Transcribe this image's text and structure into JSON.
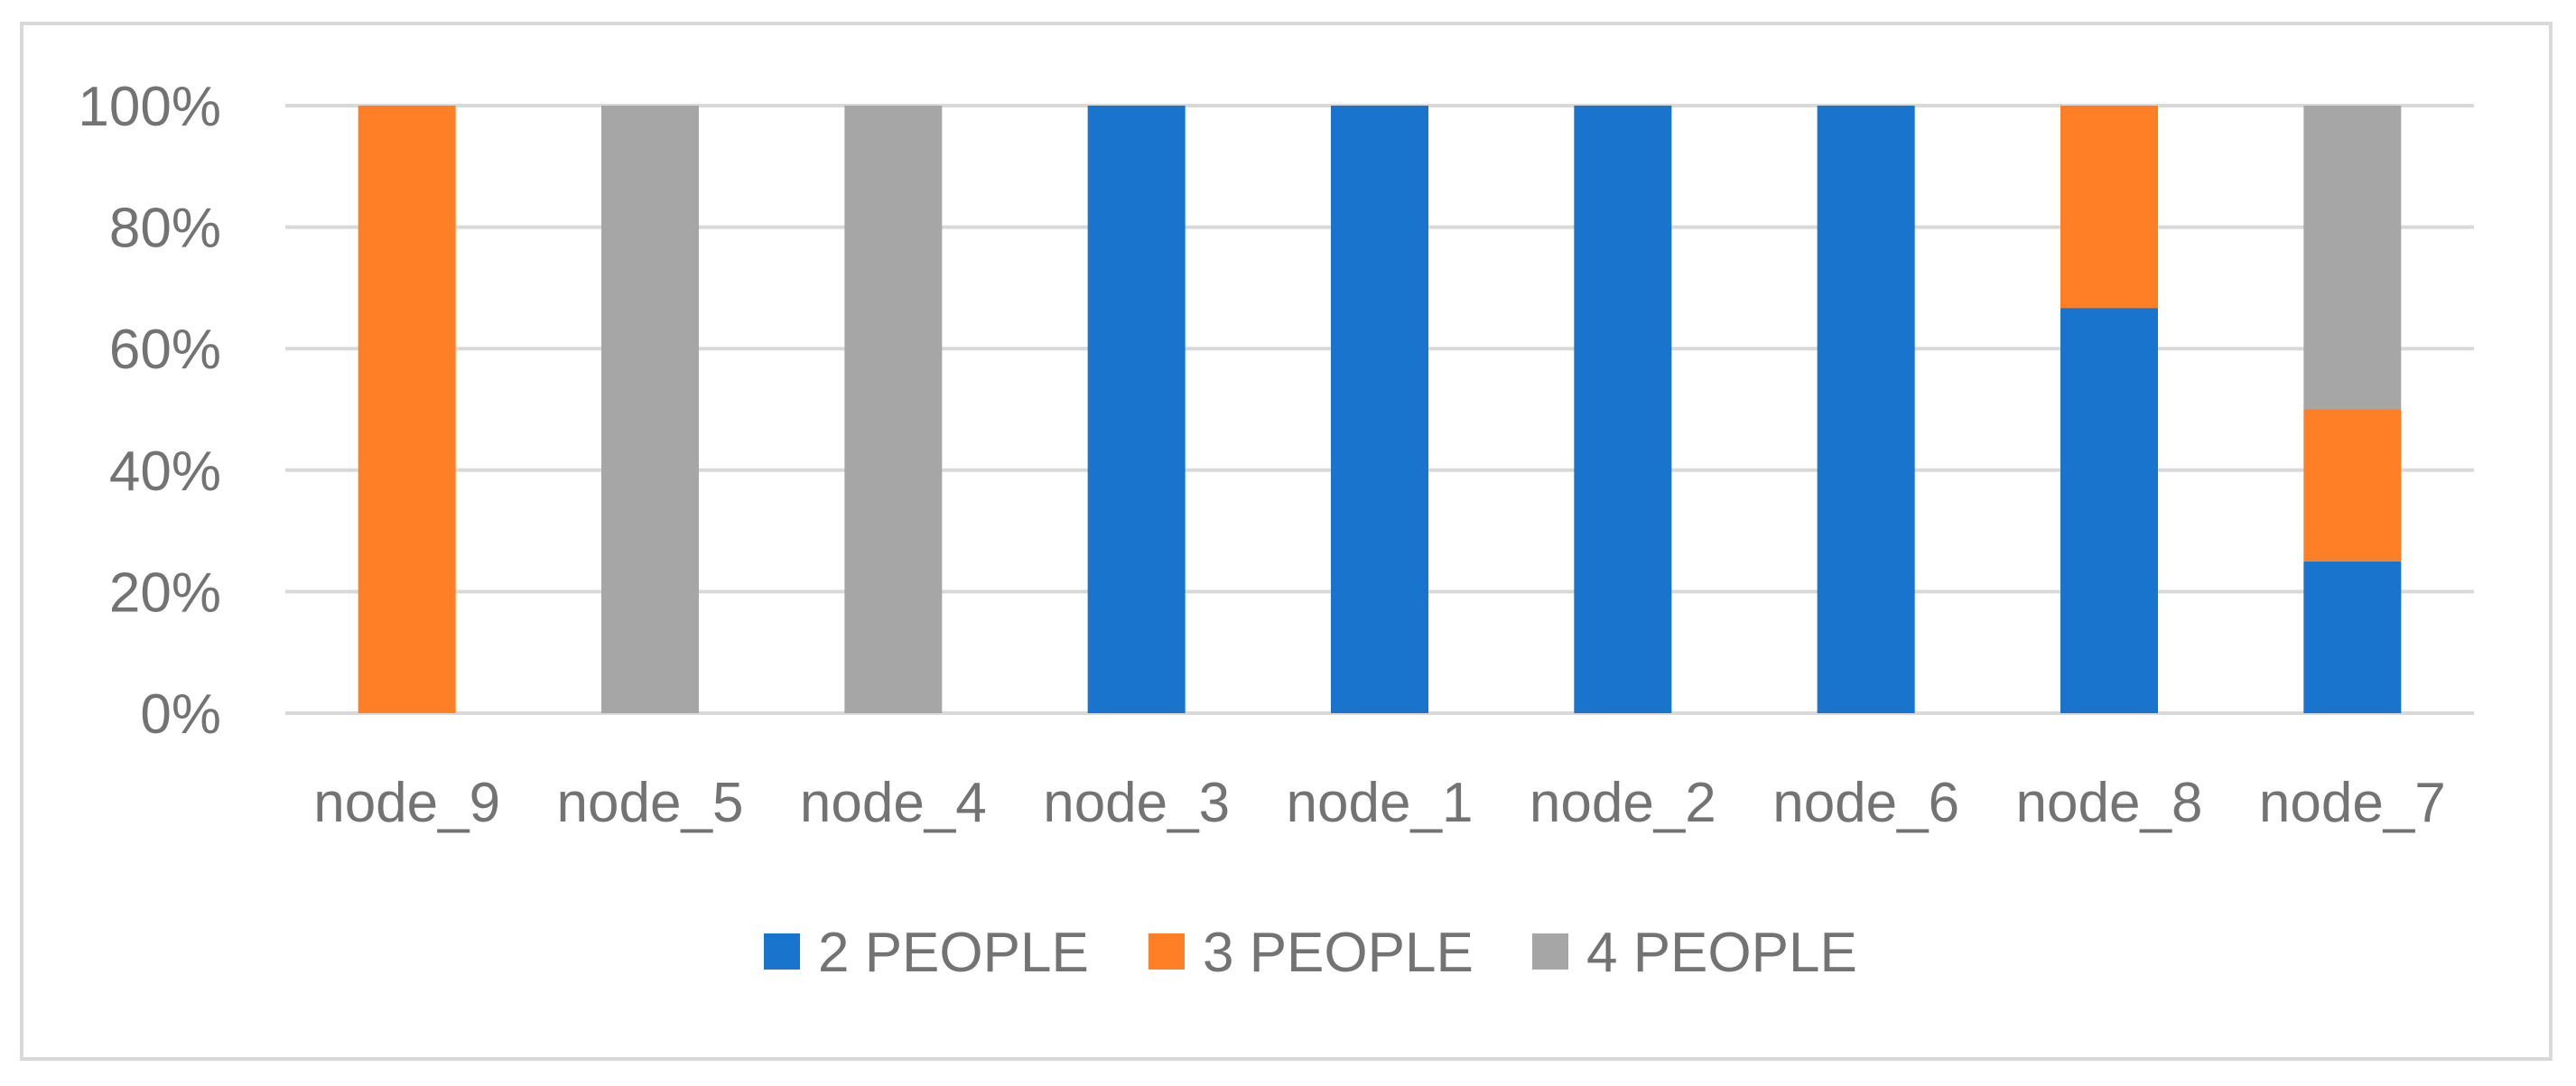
{
  "chart_data": {
    "type": "bar",
    "stacked": true,
    "normalized": true,
    "title": "",
    "xlabel": "",
    "ylabel": "",
    "categories": [
      "node_9",
      "node_5",
      "node_4",
      "node_3",
      "node_1",
      "node_2",
      "node_6",
      "node_8",
      "node_7"
    ],
    "series": [
      {
        "name": "2 PEOPLE",
        "color": "#1874cd",
        "values": [
          0,
          0,
          0,
          100,
          100,
          100,
          100,
          66.7,
          25
        ]
      },
      {
        "name": "3 PEOPLE",
        "color": "#ff7f27",
        "values": [
          100,
          0,
          0,
          0,
          0,
          0,
          0,
          33.3,
          25
        ]
      },
      {
        "name": "4 PEOPLE",
        "color": "#a6a6a6",
        "values": [
          0,
          100,
          100,
          0,
          0,
          0,
          0,
          0,
          50
        ]
      }
    ],
    "ylim": [
      0,
      100
    ],
    "yticks": [
      "0%",
      "20%",
      "40%",
      "60%",
      "80%",
      "100%"
    ],
    "grid": true,
    "legend_position": "bottom"
  }
}
